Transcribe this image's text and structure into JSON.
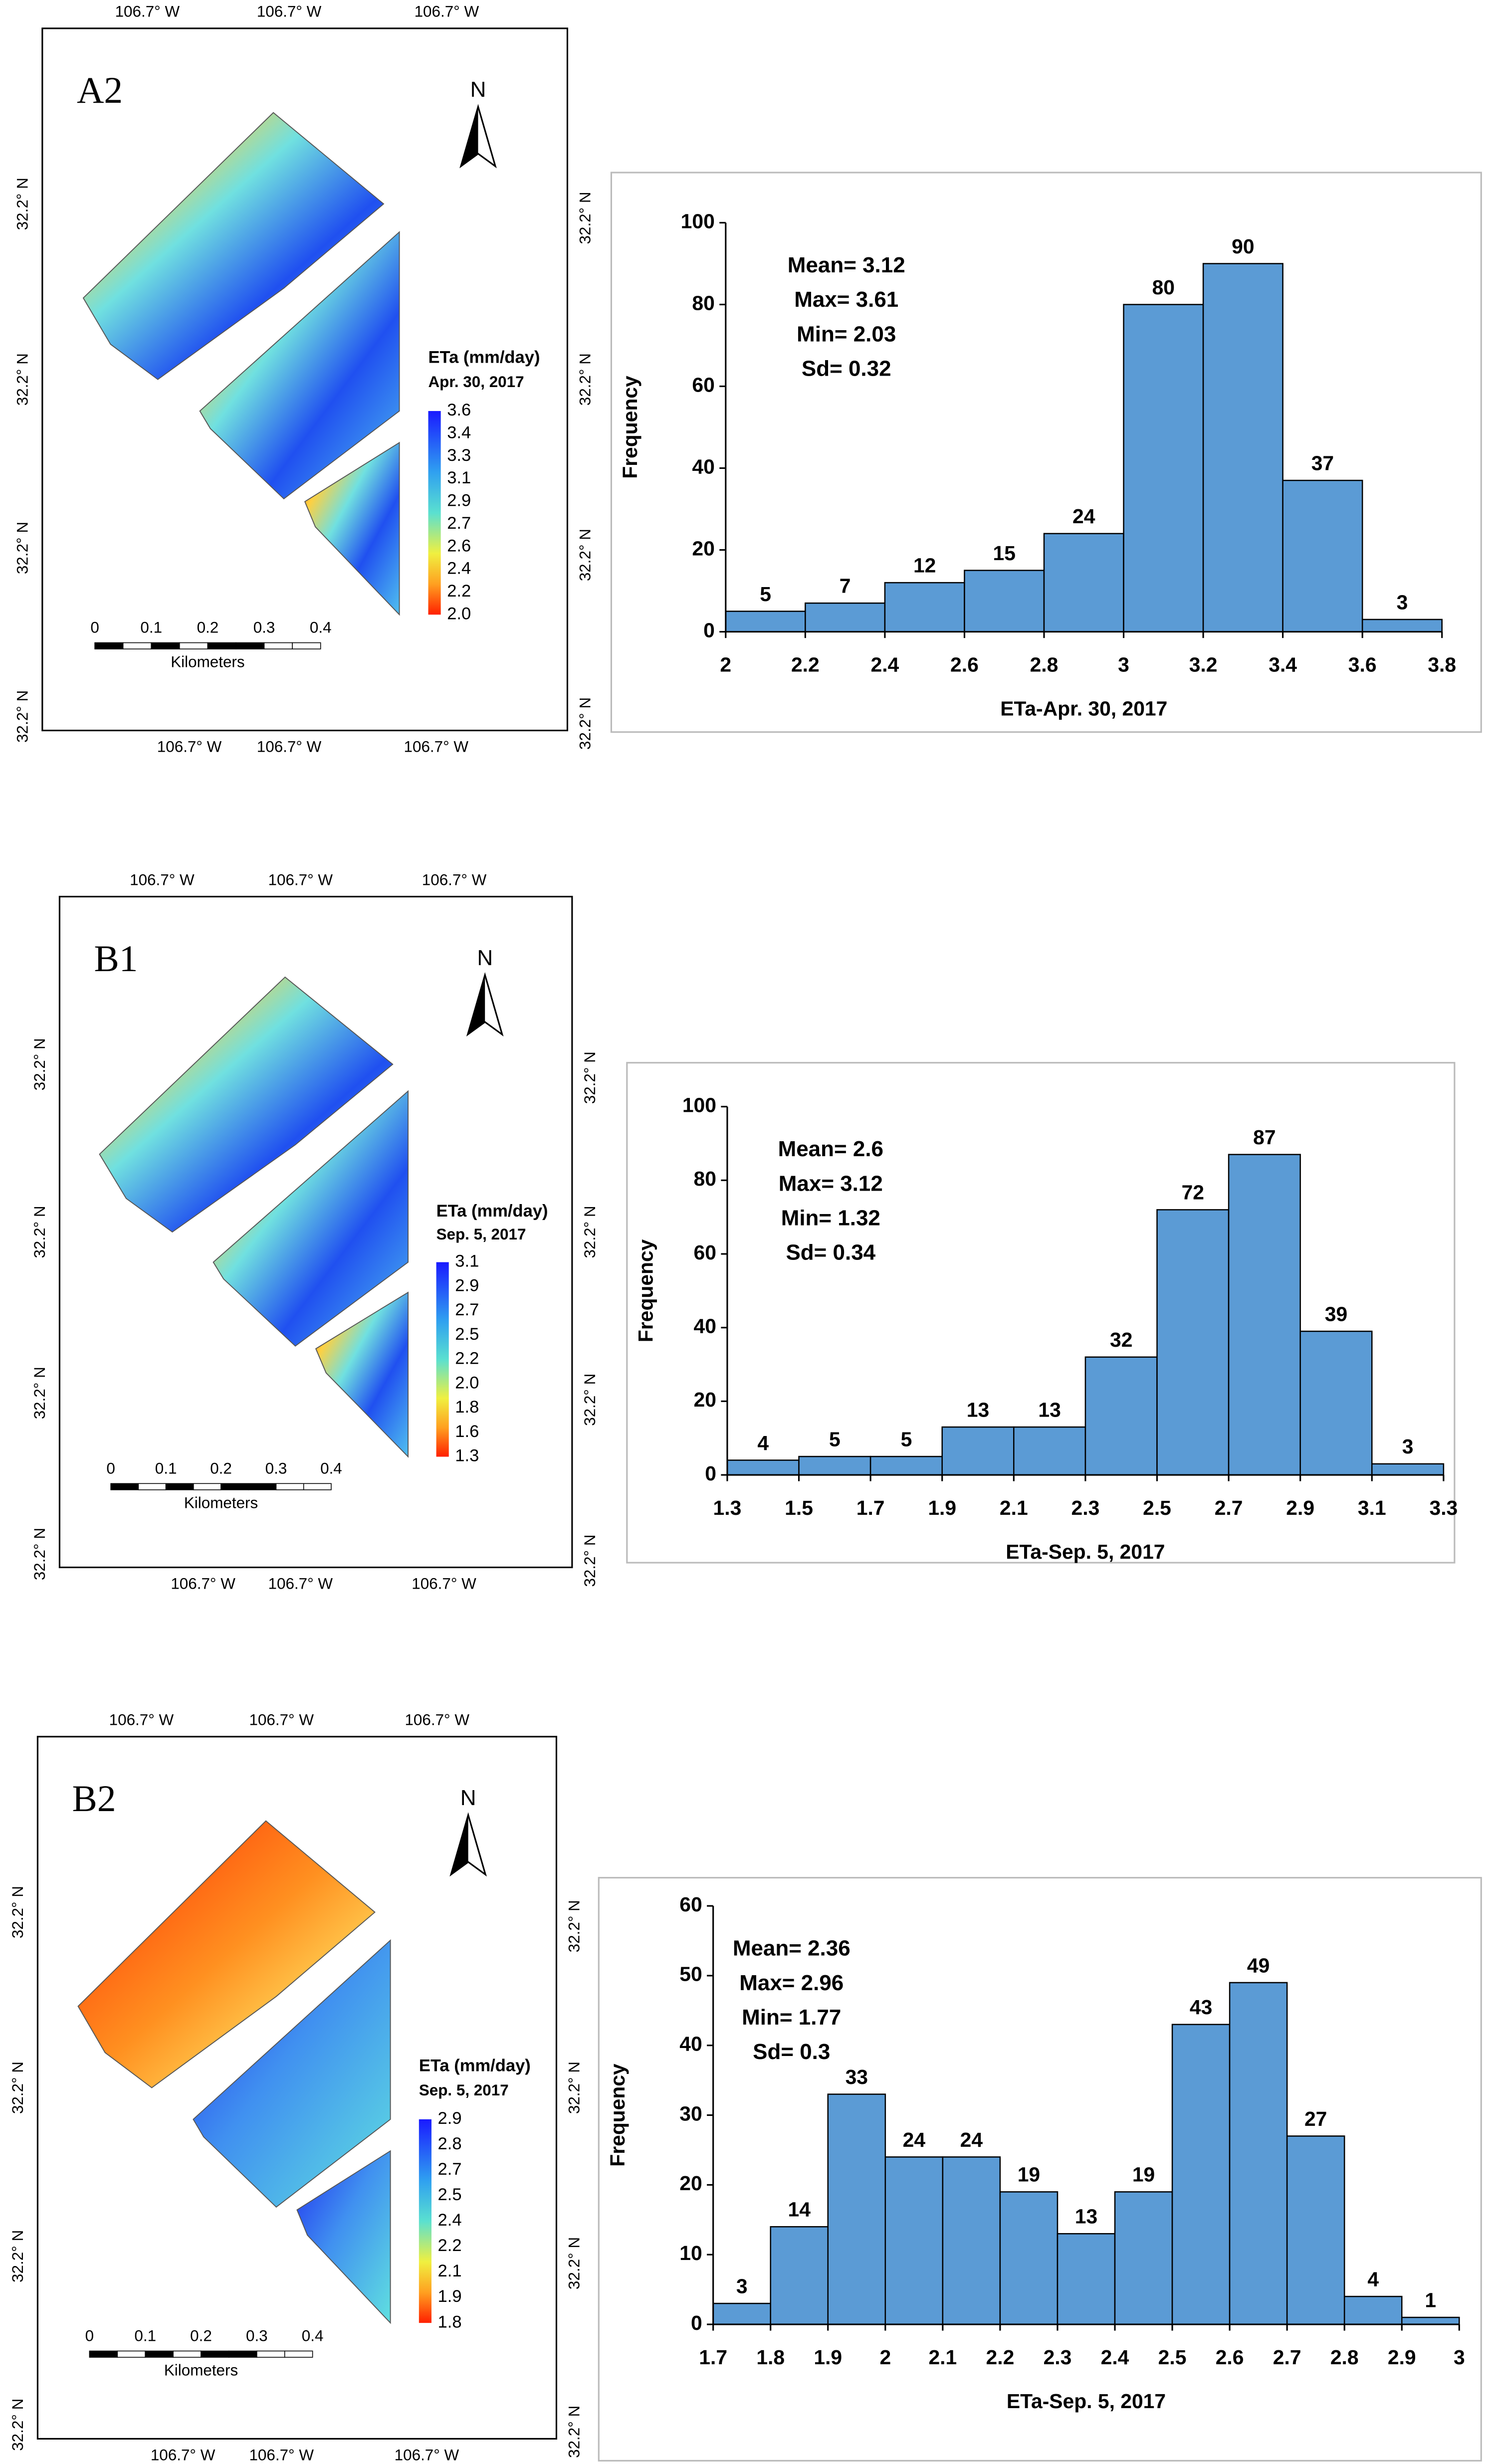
{
  "chart_data": [
    {
      "type": "histogram",
      "bins": [
        2,
        2.2,
        2.4,
        2.6,
        2.8,
        3,
        3.2,
        3.4,
        3.6,
        3.8
      ],
      "values": [
        5,
        7,
        12,
        15,
        24,
        80,
        90,
        37,
        3
      ],
      "color": "#5b9bd5",
      "xlim": [
        2,
        3.8
      ],
      "xticks": [
        2,
        2.2,
        2.4,
        2.6,
        2.8,
        3,
        3.2,
        3.4,
        3.6,
        3.8
      ],
      "ylim": [
        0,
        100
      ],
      "yticks": [
        0,
        20,
        40,
        60,
        80,
        100
      ],
      "xlabel": "ETa-Apr. 30, 2017",
      "ylabel": "Frequency",
      "annotations": [
        "Mean= 3.12",
        "Max= 3.61",
        "Min= 2.03",
        "Sd= 0.32"
      ]
    },
    {
      "type": "histogram",
      "bins": [
        1.3,
        1.5,
        1.7,
        1.9,
        2.1,
        2.3,
        2.5,
        2.7,
        2.9,
        3.1,
        3.3
      ],
      "values": [
        4,
        5,
        5,
        13,
        13,
        32,
        72,
        87,
        39,
        3
      ],
      "color": "#5b9bd5",
      "xlim": [
        1.3,
        3.3
      ],
      "xticks": [
        1.3,
        1.5,
        1.7,
        1.9,
        2.1,
        2.3,
        2.5,
        2.7,
        2.9,
        3.1,
        3.3
      ],
      "ylim": [
        0,
        100
      ],
      "yticks": [
        0,
        20,
        40,
        60,
        80,
        100
      ],
      "xlabel": "ETa-Sep. 5, 2017",
      "ylabel": "Frequency",
      "annotations": [
        "Mean= 2.6",
        "Max= 3.12",
        "Min= 1.32",
        "Sd= 0.34"
      ]
    },
    {
      "type": "histogram",
      "bins": [
        1.7,
        1.8,
        1.9,
        2,
        2.1,
        2.2,
        2.3,
        2.4,
        2.5,
        2.6,
        2.7,
        2.8,
        2.9,
        3
      ],
      "values": [
        3,
        14,
        33,
        24,
        24,
        19,
        13,
        19,
        43,
        49,
        27,
        4,
        1
      ],
      "color": "#5b9bd5",
      "xlim": [
        1.7,
        3
      ],
      "xticks": [
        1.7,
        1.8,
        1.9,
        2,
        2.1,
        2.2,
        2.3,
        2.4,
        2.5,
        2.6,
        2.7,
        2.8,
        2.9,
        3
      ],
      "ylim": [
        0,
        60
      ],
      "yticks": [
        0,
        10,
        20,
        30,
        40,
        50,
        60
      ],
      "xlabel": "ETa-Sep. 5, 2017",
      "ylabel": "Frequency",
      "annotations": [
        "Mean= 2.36",
        "Max= 2.96",
        "Min= 1.77",
        "Sd= 0.3"
      ]
    }
  ],
  "maps": [
    {
      "label": "A2",
      "north": "N",
      "top_labels": [
        "106.7° W",
        "106.7° W",
        "106.7° W"
      ],
      "bottom_labels": [
        "106.7° W",
        "106.7° W",
        "106.7° W"
      ],
      "left_labels": [
        "32.2° N",
        "32.2° N",
        "32.2° N",
        "32.2° N"
      ],
      "right_labels": [
        "32.2° N",
        "32.2° N",
        "32.2° N",
        "32.2° N"
      ],
      "legend_title": "ETa (mm/day)",
      "legend_date": "Apr. 30, 2017",
      "legend_ticks": [
        "3.6",
        "3.4",
        "3.3",
        "3.1",
        "2.9",
        "2.7",
        "2.6",
        "2.4",
        "2.2",
        "2.0"
      ],
      "scale_labels": [
        "0",
        "0.1",
        "0.2",
        "0.3",
        "0.4"
      ],
      "scale_unit": "Kilometers"
    },
    {
      "label": "B1",
      "north": "N",
      "top_labels": [
        "106.7° W",
        "106.7° W",
        "106.7° W"
      ],
      "bottom_labels": [
        "106.7° W",
        "106.7° W",
        "106.7° W"
      ],
      "left_labels": [
        "32.2° N",
        "32.2° N",
        "32.2° N",
        "32.2° N"
      ],
      "right_labels": [
        "32.2° N",
        "32.2° N",
        "32.2° N",
        "32.2° N"
      ],
      "legend_title": "ETa (mm/day)",
      "legend_date": "Sep. 5, 2017",
      "legend_ticks": [
        "3.1",
        "2.9",
        "2.7",
        "2.5",
        "2.2",
        "2.0",
        "1.8",
        "1.6",
        "1.3"
      ],
      "scale_labels": [
        "0",
        "0.1",
        "0.2",
        "0.3",
        "0.4"
      ],
      "scale_unit": "Kilometers"
    },
    {
      "label": "B2",
      "north": "N",
      "top_labels": [
        "106.7° W",
        "106.7° W",
        "106.7° W"
      ],
      "bottom_labels": [
        "106.7° W",
        "106.7° W",
        "106.7° W"
      ],
      "left_labels": [
        "32.2° N",
        "32.2° N",
        "32.2° N",
        "32.2° N"
      ],
      "right_labels": [
        "32.2° N",
        "32.2° N",
        "32.2° N",
        "32.2° N"
      ],
      "legend_title": "ETa (mm/day)",
      "legend_date": "Sep. 5, 2017",
      "legend_ticks": [
        "2.9",
        "2.8",
        "2.7",
        "2.5",
        "2.4",
        "2.2",
        "2.1",
        "1.9",
        "1.8"
      ],
      "scale_labels": [
        "0",
        "0.1",
        "0.2",
        "0.3",
        "0.4"
      ],
      "scale_unit": "Kilometers"
    }
  ]
}
